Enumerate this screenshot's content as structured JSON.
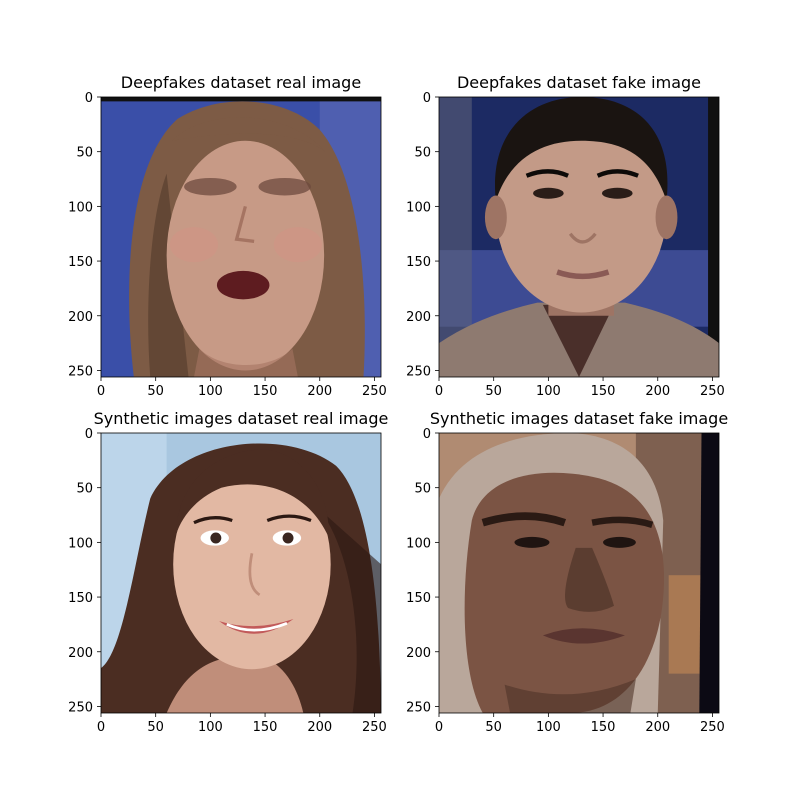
{
  "chart_data": [
    {
      "type": "image",
      "title": "Deepfakes dataset real image",
      "image_description": "blurred face of a woman with long brown hair, eyes closed, mouth open, blue background",
      "xlim": [
        0,
        256
      ],
      "ylim": [
        256,
        0
      ],
      "xticks": [
        "0",
        "50",
        "100",
        "150",
        "200",
        "250"
      ],
      "yticks": [
        "0",
        "50",
        "100",
        "150",
        "200",
        "250"
      ],
      "palette": {
        "bg": "#3a4fa8",
        "bg2": "#5d6bb5",
        "skin": "#c79a86",
        "skin_shade": "#a57462",
        "hair": "#7d5b45",
        "hair_dark": "#4a3426",
        "mouth": "#5e1c20",
        "eye": "#6e4a3e",
        "border": "#111111"
      }
    },
    {
      "type": "image",
      "title": "Deepfakes dataset fake image",
      "image_description": "face of a man with short dark hair wearing a suit jacket, TV studio background",
      "xlim": [
        0,
        256
      ],
      "ylim": [
        256,
        0
      ],
      "xticks": [
        "0",
        "50",
        "100",
        "150",
        "200",
        "250"
      ],
      "yticks": [
        "0",
        "50",
        "100",
        "150",
        "200",
        "250"
      ],
      "palette": {
        "bg": "#1c2a63",
        "bg2": "#4b5aa8",
        "skin": "#c39a87",
        "skin_shade": "#9e7464",
        "hair": "#1a1411",
        "hair_dark": "#0d0a08",
        "mouth": "#8a5a55",
        "eye": "#2a1d18",
        "jacket": "#8e7a70",
        "shirt": "#4a2f2a",
        "border": "#111111"
      }
    },
    {
      "type": "image",
      "title": "Synthetic images dataset real image",
      "image_description": "smiling woman with long dark brown hair, light blue background",
      "xlim": [
        0,
        256
      ],
      "ylim": [
        256,
        0
      ],
      "xticks": [
        "0",
        "50",
        "100",
        "150",
        "200",
        "250"
      ],
      "yticks": [
        "0",
        "50",
        "100",
        "150",
        "200",
        "250"
      ],
      "palette": {
        "bg": "#a9c7e0",
        "bg2": "#c9def0",
        "skin": "#e2b8a3",
        "skin_shade": "#c08e7a",
        "hair": "#4b2d22",
        "hair_dark": "#2b1812",
        "mouth": "#c25a5a",
        "eye": "#3a2620",
        "border": "#111111"
      }
    },
    {
      "type": "image",
      "title": "Synthetic images dataset fake image",
      "image_description": "man with shaved head and dark skin, warm blurred background",
      "xlim": [
        0,
        256
      ],
      "ylim": [
        256,
        0
      ],
      "xticks": [
        "0",
        "50",
        "100",
        "150",
        "200",
        "250"
      ],
      "yticks": [
        "0",
        "50",
        "100",
        "150",
        "200",
        "250"
      ],
      "palette": {
        "bg": "#b08b72",
        "bg2": "#6a4e41",
        "skin": "#7b5444",
        "skin_shade": "#4f3328",
        "hair": "#b9a79b",
        "hair_dark": "#8a776c",
        "mouth": "#5a3530",
        "eye": "#1f1411",
        "border": "#0c0a14"
      }
    }
  ]
}
